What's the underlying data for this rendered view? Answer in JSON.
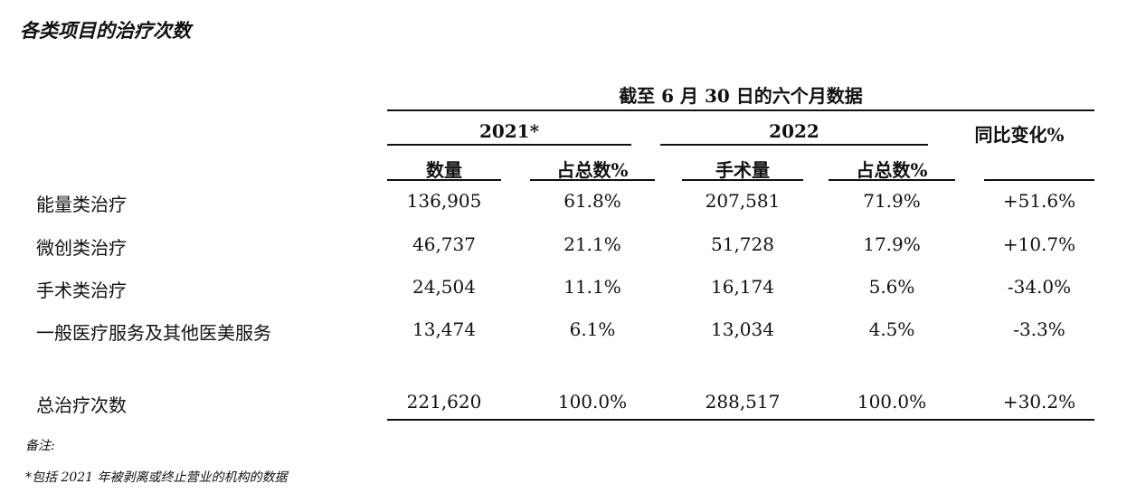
{
  "title": "各类项目的治疗次数",
  "period_header": "截至 6 月 30 日的六个月数据",
  "year_2021": "2021*",
  "year_2022": "2022",
  "yoy_header": "同比变化%",
  "sub_headers": {
    "y2021_count": "数量",
    "y2021_share": "占总数%",
    "y2022_count": "手术量",
    "y2022_share": "占总数%"
  },
  "rows": [
    {
      "label": "能量类治疗",
      "c2021": "136,905",
      "s2021": "61.8%",
      "c2022": "207,581",
      "s2022": "71.9%",
      "yoy": "+51.6%"
    },
    {
      "label": "微创类治疗",
      "c2021": "46,737",
      "s2021": "21.1%",
      "c2022": "51,728",
      "s2022": "17.9%",
      "yoy": "+10.7%"
    },
    {
      "label": "手术类治疗",
      "c2021": "24,504",
      "s2021": "11.1%",
      "c2022": "16,174",
      "s2022": "5.6%",
      "yoy": "-34.0%"
    },
    {
      "label": "一般医疗服务及其他医美服务",
      "c2021": "13,474",
      "s2021": "6.1%",
      "c2022": "13,034",
      "s2022": "4.5%",
      "yoy": "-3.3%"
    }
  ],
  "total": {
    "label": "总治疗次数",
    "c2021": "221,620",
    "s2021": "100.0%",
    "c2022": "288,517",
    "s2022": "100.0%",
    "yoy": "+30.2%"
  },
  "notes_label": "备注:",
  "footnote": "*包括 2021 年被剥离或终止营业的机构的数据"
}
